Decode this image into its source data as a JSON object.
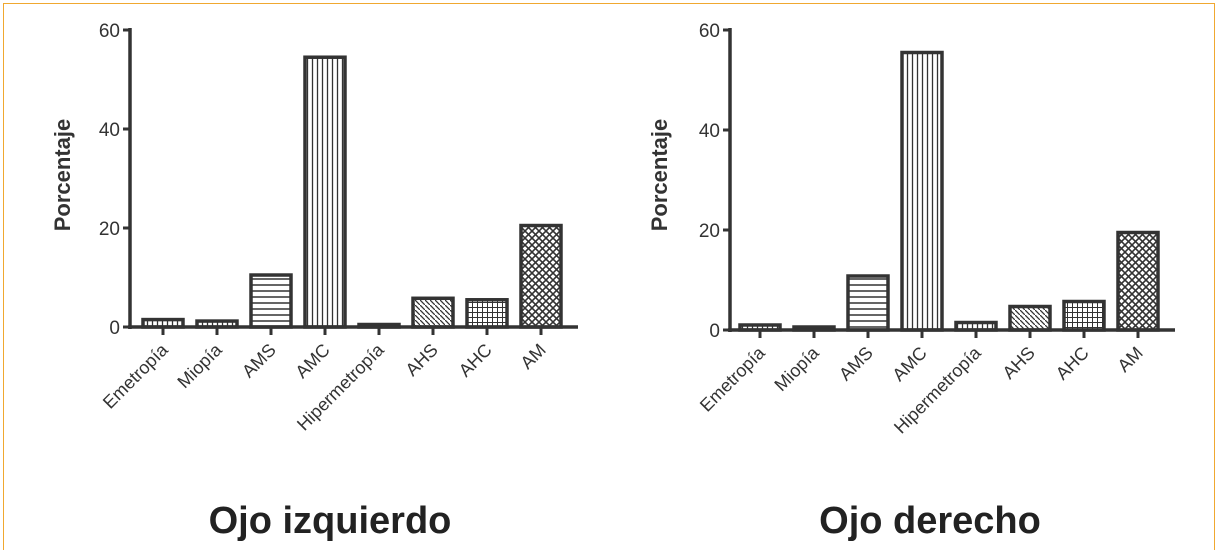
{
  "chart_data": [
    {
      "type": "bar",
      "title": "Ojo izquierdo",
      "ylabel": "Porcentaje",
      "xlabel": "",
      "categories": [
        "Emetropía",
        "Miopía",
        "AMS",
        "AMC",
        "Hipermetropía",
        "AHS",
        "AHC",
        "AM"
      ],
      "values": [
        1.5,
        1.2,
        10.5,
        54.5,
        0.5,
        5.8,
        5.5,
        20.5
      ],
      "patterns": [
        "vlines",
        "vlines",
        "hlines",
        "vlines",
        "vlines",
        "diag-down",
        "grid",
        "crosshatch"
      ],
      "ylim": [
        0,
        60
      ],
      "yticks": [
        0,
        20,
        40,
        60
      ],
      "grid": false
    },
    {
      "type": "bar",
      "title": "Ojo derecho",
      "ylabel": "Porcentaje",
      "xlabel": "",
      "categories": [
        "Emetropía",
        "Miopía",
        "AMS",
        "AMC",
        "Hipermetropía",
        "AHS",
        "AHC",
        "AM"
      ],
      "values": [
        1.0,
        0.6,
        10.8,
        55.5,
        1.5,
        4.7,
        5.7,
        19.5
      ],
      "patterns": [
        "vlines",
        "vlines",
        "hlines",
        "vlines",
        "vlines",
        "diag-down",
        "grid",
        "crosshatch"
      ],
      "ylim": [
        0,
        60
      ],
      "yticks": [
        0,
        20,
        40,
        60
      ],
      "grid": false
    }
  ],
  "colors": {
    "ink": "#333333",
    "frame": "#f0a830"
  }
}
